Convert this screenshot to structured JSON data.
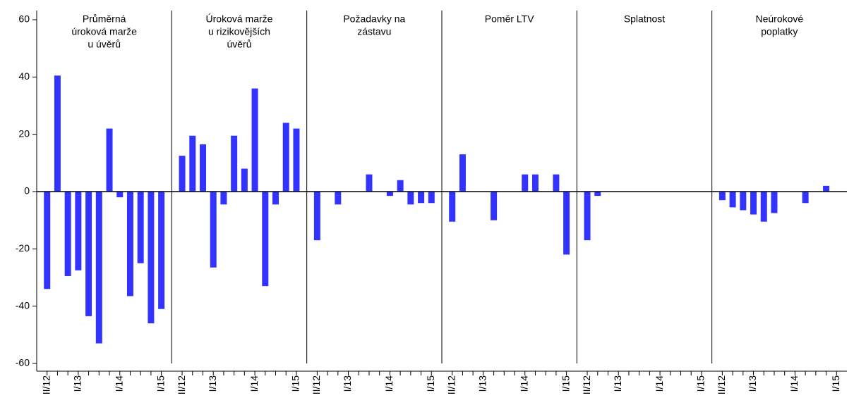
{
  "chart_data": {
    "type": "bar",
    "color": "#3333ff",
    "categories": [
      "II/12",
      null,
      null,
      "I/13",
      null,
      null,
      null,
      "I/14",
      null,
      null,
      null,
      "I/15"
    ],
    "ylim": [
      -60,
      60
    ],
    "yticks": [
      -60,
      -40,
      -20,
      0,
      20,
      40,
      60
    ],
    "panels": [
      {
        "title": [
          "Průměrná",
          "úroková marže",
          "u úvěrů"
        ],
        "values": [
          -34,
          40.5,
          -29.5,
          -27.5,
          -43.5,
          -53,
          22,
          -2,
          -36.5,
          -25,
          -46,
          -41
        ]
      },
      {
        "title": [
          "Úroková marže",
          "u rizikovějších",
          "úvěrů"
        ],
        "values": [
          12.5,
          19.5,
          16.5,
          -26.5,
          -4.5,
          19.5,
          8,
          36,
          -33,
          -4.5,
          24,
          22
        ]
      },
      {
        "title": [
          "Požadavky na",
          "zástavu"
        ],
        "values": [
          -17,
          0,
          -4.5,
          0,
          0,
          6,
          0,
          -1.5,
          4,
          -4.5,
          -4,
          -4
        ]
      },
      {
        "title": [
          "Poměr LTV"
        ],
        "values": [
          -10.5,
          13,
          0,
          0,
          -10,
          0,
          0,
          6,
          6,
          0,
          6,
          -22
        ]
      },
      {
        "title": [
          "Splatnost"
        ],
        "values": [
          -17,
          -1.5,
          0,
          0,
          0,
          0,
          0,
          0,
          0,
          0,
          0,
          0
        ]
      },
      {
        "title": [
          "Neúrokové",
          "poplatky"
        ],
        "values": [
          -3,
          -5.5,
          -6.5,
          -8,
          -10.5,
          -7.5,
          0,
          0,
          -4,
          0,
          2,
          0
        ]
      }
    ]
  }
}
